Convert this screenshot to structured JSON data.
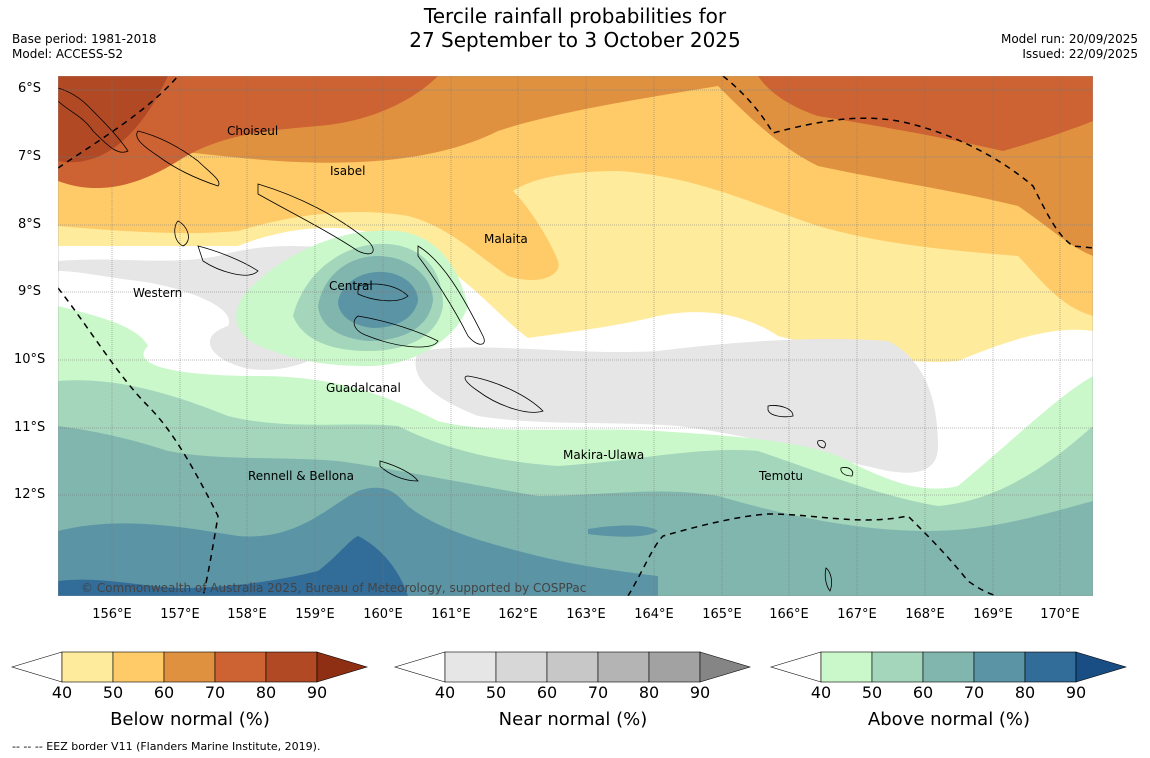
{
  "title": {
    "line1": "Tercile rainfall probabilities for",
    "line2": "27 September to 3 October 2025"
  },
  "meta_left": {
    "base_period": "Base period: 1981-2018",
    "model": "Model: ACCESS-S2"
  },
  "meta_right": {
    "model_run": "Model run: 20/09/2025",
    "issued": "Issued: 22/09/2025"
  },
  "map": {
    "lat_labels": [
      "6°S",
      "7°S",
      "8°S",
      "9°S",
      "10°S",
      "11°S",
      "12°S"
    ],
    "lon_labels": [
      "156°E",
      "157°E",
      "158°E",
      "159°E",
      "160°E",
      "161°E",
      "162°E",
      "163°E",
      "164°E",
      "165°E",
      "166°E",
      "167°E",
      "168°E",
      "169°E",
      "170°E"
    ],
    "region_labels": {
      "choiseul": "Choiseul",
      "isabel": "Isabel",
      "malaita": "Malaita",
      "western": "Western",
      "central": "Central",
      "guadalcanal": "Guadalcanal",
      "makira": "Makira-Ulawa",
      "rennell": "Rennell & Bellona",
      "temotu": "Temotu"
    },
    "copyright": "© Commonwealth of Australia 2025, Bureau of Meteorology, supported by COSPPac"
  },
  "colorbars": {
    "ticks": [
      "40",
      "50",
      "60",
      "70",
      "80",
      "90"
    ],
    "below": {
      "title": "Below normal (%)",
      "colors": [
        "#ffeb9c",
        "#fecb68",
        "#e0913f",
        "#cd6232",
        "#b14a24",
        "#8e2f14"
      ]
    },
    "near": {
      "title": "Near normal (%)",
      "colors": [
        "#e6e6e6",
        "#d7d7d7",
        "#c7c7c7",
        "#b4b4b4",
        "#a2a2a2",
        "#858585"
      ]
    },
    "above": {
      "title": "Above normal (%)",
      "colors": [
        "#caf8ca",
        "#a3d6bb",
        "#80b6ae",
        "#5b94a4",
        "#326c98",
        "#194e84"
      ]
    }
  },
  "footer": {
    "eez_note": "--  --  -- EEZ border V11 (Flanders Marine Institute, 2019)."
  }
}
